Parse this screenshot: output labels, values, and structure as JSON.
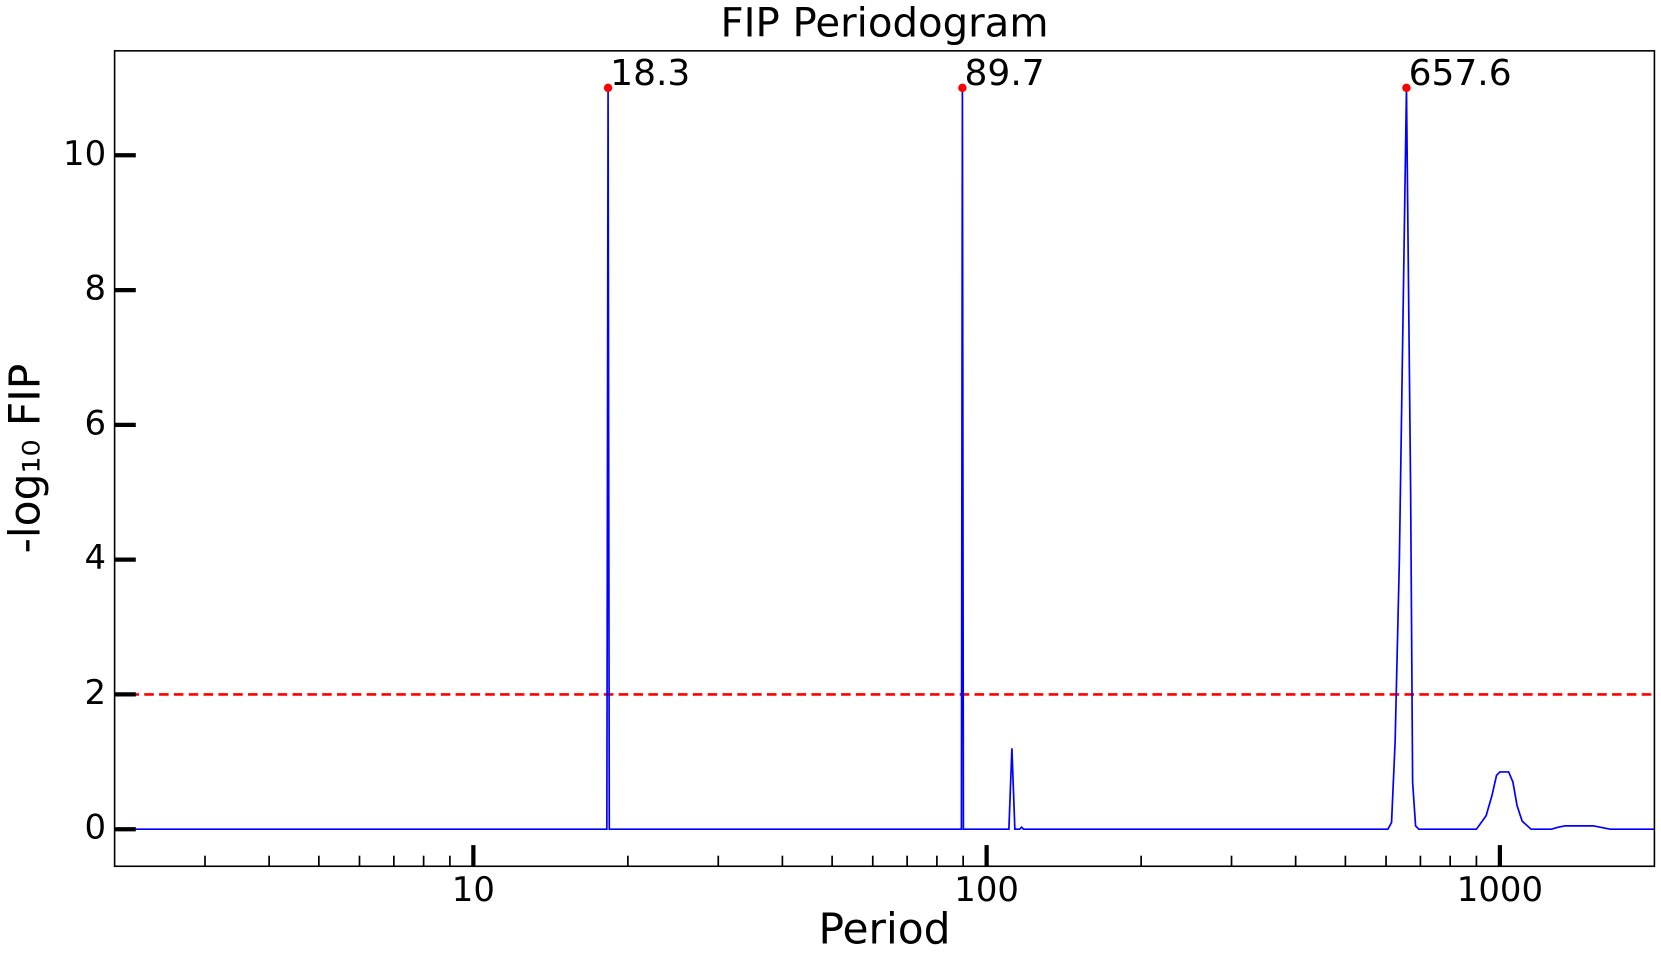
{
  "chart_data": {
    "type": "line",
    "title": "FIP Periodogram",
    "x_label": "Period",
    "y_label": "-log₁₀ FIP",
    "xscale": "log",
    "xlim": [
      2,
      2000
    ],
    "ylim": [
      -0.55,
      11.55
    ],
    "xticks": [
      10,
      100,
      1000
    ],
    "xticks_minor": [
      3,
      4,
      5,
      6,
      7,
      8,
      9,
      20,
      30,
      40,
      50,
      60,
      70,
      80,
      90,
      200,
      300,
      400,
      500,
      600,
      700,
      800,
      900
    ],
    "yticks": [
      0,
      2,
      4,
      6,
      8,
      10
    ],
    "series": [
      {
        "color": "#0000ff",
        "x": [
          2,
          18.2,
          18.3,
          18.4,
          89.3,
          89.7,
          90.1,
          110.5,
          112,
          113.5,
          116,
          117,
          118,
          605,
          615,
          625,
          637,
          657.6,
          670,
          676,
          685,
          695,
          900,
          940,
          965,
          985,
          1000,
          1040,
          1060,
          1080,
          1105,
          1150,
          1260,
          1300,
          1340,
          1520,
          1640,
          2000
        ],
        "values": [
          0,
          0,
          11,
          0,
          0,
          11,
          0,
          0,
          1.2,
          0,
          0,
          0.03,
          0,
          0,
          0.1,
          1.3,
          4,
          11,
          5,
          0.7,
          0.05,
          0,
          0,
          0.2,
          0.5,
          0.8,
          0.85,
          0.85,
          0.7,
          0.35,
          0.12,
          0,
          0,
          0.03,
          0.05,
          0.05,
          0,
          0
        ]
      }
    ],
    "threshold": {
      "value": 2,
      "color": "#ff0000",
      "style": "dashed"
    },
    "peaks": {
      "color": "#ff0000",
      "x": [
        18.3,
        89.7,
        657.6
      ],
      "y": [
        11,
        11,
        11
      ]
    }
  }
}
